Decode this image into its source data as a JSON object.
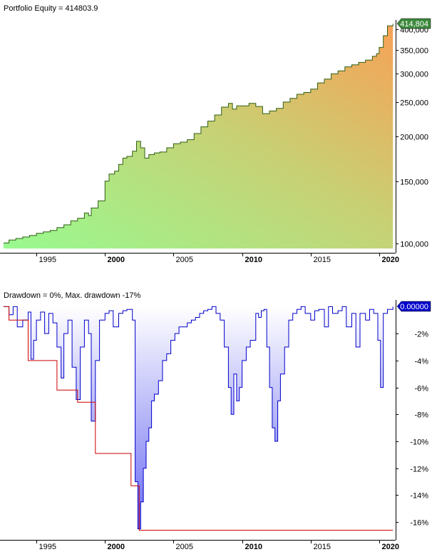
{
  "chart_data": [
    {
      "type": "area",
      "title": "Portfolio Equity = 414803.9",
      "scale": "log",
      "ylim": [
        97000,
        425000
      ],
      "xlim": [
        1992.5,
        2021.2
      ],
      "y_ticks": [
        {
          "value": 400000,
          "label": "400,000"
        },
        {
          "value": 350000,
          "label": "350,000"
        },
        {
          "value": 300000,
          "label": "300,000"
        },
        {
          "value": 250000,
          "label": "250,000"
        },
        {
          "value": 200000,
          "label": "200,000"
        },
        {
          "value": 150000,
          "label": "150,000"
        },
        {
          "value": 100000,
          "label": "100,000"
        }
      ],
      "x_ticks": [
        {
          "value": 1995,
          "label": "1995",
          "bold": false
        },
        {
          "value": 2000,
          "label": "2000",
          "bold": true
        },
        {
          "value": 2005,
          "label": "2005",
          "bold": false
        },
        {
          "value": 2010,
          "label": "2010",
          "bold": true
        },
        {
          "value": 2015,
          "label": "2015",
          "bold": false
        },
        {
          "value": 2020,
          "label": "2020",
          "bold": true
        }
      ],
      "last_value_label": "414,804",
      "colors": {
        "fill_low": "#98fa90",
        "fill_high": "#f7a156",
        "line": "#2f5f12",
        "badge": "#3c8a3c"
      },
      "x": [
        1992.6,
        1993.0,
        1993.5,
        1994.0,
        1994.5,
        1995.0,
        1995.5,
        1996.0,
        1996.5,
        1997.0,
        1997.5,
        1998.0,
        1998.5,
        1998.8,
        1999.0,
        1999.5,
        2000.0,
        2000.3,
        2000.7,
        2001.0,
        2001.3,
        2001.6,
        2002.0,
        2002.3,
        2002.6,
        2002.9,
        2003.2,
        2003.6,
        2004.0,
        2004.5,
        2005.0,
        2005.5,
        2006.0,
        2006.5,
        2007.0,
        2007.5,
        2008.0,
        2008.5,
        2009.0,
        2009.3,
        2009.6,
        2010.0,
        2010.5,
        2011.0,
        2011.5,
        2012.0,
        2012.5,
        2013.0,
        2013.5,
        2014.0,
        2014.5,
        2015.0,
        2015.5,
        2016.0,
        2016.5,
        2017.0,
        2017.5,
        2018.0,
        2018.5,
        2019.0,
        2019.5,
        2019.8,
        2020.0,
        2020.3,
        2020.6,
        2021.0
      ],
      "values": [
        100500,
        102500,
        103500,
        104500,
        105500,
        107000,
        108000,
        109000,
        111000,
        113000,
        116000,
        118000,
        122000,
        120000,
        126000,
        132000,
        150000,
        157000,
        160000,
        167000,
        174000,
        176000,
        182000,
        194000,
        186000,
        174000,
        178000,
        180000,
        181000,
        186000,
        191000,
        193000,
        196000,
        204000,
        213000,
        221000,
        230000,
        242000,
        248000,
        239000,
        244000,
        244000,
        248000,
        243000,
        232000,
        236000,
        240000,
        250000,
        256000,
        263000,
        266000,
        272000,
        283000,
        290000,
        300000,
        306000,
        314000,
        318000,
        323000,
        328000,
        336000,
        342000,
        356000,
        384000,
        409000,
        414804
      ]
    },
    {
      "type": "area",
      "title": "Drawdown = 0%, Max. drawdown -17%",
      "ylim": [
        -17,
        0.5
      ],
      "xlim": [
        1992.5,
        2021.2
      ],
      "y_ticks": [
        {
          "value": -2,
          "label": "-2%"
        },
        {
          "value": -4,
          "label": "-4%"
        },
        {
          "value": -6,
          "label": "-6%"
        },
        {
          "value": -8,
          "label": "-8%"
        },
        {
          "value": -10,
          "label": "-10%"
        },
        {
          "value": -12,
          "label": "-12%"
        },
        {
          "value": -14,
          "label": "-14%"
        },
        {
          "value": -16,
          "label": "-16%"
        }
      ],
      "x_ticks": [
        {
          "value": 1995,
          "label": "1995",
          "bold": false
        },
        {
          "value": 2000,
          "label": "2000",
          "bold": true
        },
        {
          "value": 2005,
          "label": "2005",
          "bold": false
        },
        {
          "value": 2010,
          "label": "2010",
          "bold": true
        },
        {
          "value": 2015,
          "label": "2015",
          "bold": false
        },
        {
          "value": 2020,
          "label": "2020",
          "bold": true
        }
      ],
      "last_value_label": "0.00000",
      "colors": {
        "fill_top": "#ffffff",
        "fill_bottom": "#6a6af2",
        "line": "#0000cc",
        "max_line": "#cc0000",
        "badge": "#0000cc"
      },
      "x": [
        1992.6,
        1993.0,
        1993.3,
        1993.6,
        1994.0,
        1994.4,
        1994.6,
        1994.8,
        1995.0,
        1995.3,
        1995.6,
        1995.9,
        1996.2,
        1996.5,
        1996.8,
        1997.0,
        1997.3,
        1997.6,
        1997.9,
        1998.2,
        1998.5,
        1998.8,
        1999.0,
        1999.3,
        1999.6,
        2000.0,
        2000.3,
        2000.6,
        2001.0,
        2001.3,
        2001.6,
        2002.0,
        2002.2,
        2002.4,
        2002.6,
        2002.8,
        2003.0,
        2003.2,
        2003.4,
        2003.6,
        2003.9,
        2004.2,
        2004.5,
        2004.8,
        2005.1,
        2005.4,
        2005.7,
        2006.0,
        2006.3,
        2006.6,
        2006.9,
        2007.2,
        2007.5,
        2007.8,
        2008.1,
        2008.4,
        2008.7,
        2009.0,
        2009.2,
        2009.4,
        2009.6,
        2009.8,
        2010.0,
        2010.3,
        2010.6,
        2011.0,
        2011.2,
        2011.4,
        2011.6,
        2011.8,
        2012.0,
        2012.2,
        2012.4,
        2012.6,
        2012.8,
        2013.1,
        2013.4,
        2013.7,
        2014.0,
        2014.3,
        2014.6,
        2015.0,
        2015.3,
        2015.6,
        2016.0,
        2016.3,
        2016.6,
        2017.0,
        2017.3,
        2017.6,
        2018.0,
        2018.3,
        2018.6,
        2019.0,
        2019.3,
        2019.6,
        2019.9,
        2020.1,
        2020.3,
        2020.6,
        2021.0
      ],
      "values": [
        0,
        -0.6,
        0,
        -1.5,
        -1.0,
        -0.4,
        -3.9,
        -2.5,
        -1.0,
        -0.4,
        -2.0,
        -0.5,
        -1.2,
        -3.0,
        -5.3,
        -2.0,
        -1.0,
        -4.5,
        -6.9,
        -3.0,
        -1.0,
        -2.0,
        -8.5,
        -4.0,
        -1.0,
        -0.5,
        -0.3,
        -1.5,
        -0.5,
        -0.3,
        -0.2,
        -1.0,
        -13.0,
        -16.5,
        -14.5,
        -12.0,
        -10.0,
        -9.0,
        -7.0,
        -6.5,
        -5.5,
        -4.0,
        -3.5,
        -2.5,
        -2.0,
        -1.5,
        -1.5,
        -1.2,
        -1.0,
        -0.8,
        -0.5,
        -0.3,
        -0.2,
        0,
        -0.5,
        -1.0,
        -3.0,
        -6.0,
        -8.0,
        -5.0,
        -7.0,
        -6.0,
        -4.0,
        -3.0,
        -2.5,
        -0.5,
        -0.8,
        -0.3,
        -0.2,
        -3.0,
        -6.0,
        -9.0,
        -10.0,
        -7.0,
        -5.0,
        -3.0,
        -1.0,
        -0.5,
        -0.2,
        0,
        -0.5,
        -1.0,
        -0.3,
        -0.2,
        -1.5,
        0,
        -0.5,
        -0.3,
        0,
        -1.5,
        -0.5,
        -3.0,
        -0.5,
        -1.0,
        -0.2,
        -0.5,
        -2.5,
        -6.0,
        -0.5,
        -0.2,
        0
      ],
      "max_drawdown": {
        "x": [
          1992.6,
          1993.0,
          1993.0,
          1994.4,
          1994.4,
          1996.5,
          1996.5,
          1998.0,
          1998.0,
          1999.3,
          1999.3,
          2001.9,
          2001.9,
          2002.5,
          2002.5,
          2021.0
        ],
        "values": [
          0,
          0,
          -1.0,
          -1.0,
          -4.0,
          -4.0,
          -6.2,
          -6.2,
          -7.1,
          -7.1,
          -10.9,
          -10.9,
          -13.3,
          -13.3,
          -16.6,
          -16.6
        ]
      }
    }
  ]
}
